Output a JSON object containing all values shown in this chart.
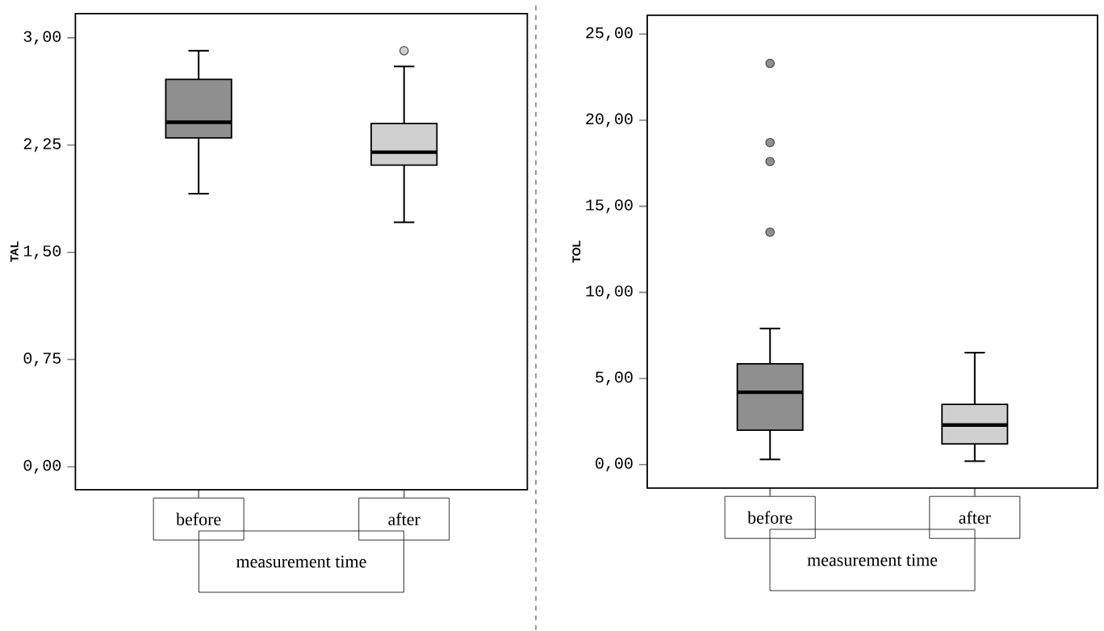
{
  "chart_data": [
    {
      "type": "box",
      "categories": [
        "before",
        "after"
      ],
      "colors": [
        "#8f8f8f",
        "#d0d0d0"
      ],
      "ylabel": "TAL",
      "xlabel": "measurement time",
      "boxes": [
        {
          "low": 1.91,
          "q1": 2.3,
          "median": 2.41,
          "q3": 2.71,
          "high": 2.91
        },
        {
          "low": 1.71,
          "q1": 2.11,
          "median": 2.2,
          "q3": 2.4,
          "high": 2.8,
          "outliers": [
            2.91
          ]
        }
      ],
      "ylim": [
        -0.16,
        3.17
      ],
      "yticks": [
        {
          "value": 0,
          "label": "0,00"
        },
        {
          "value": 0.75,
          "label": "0,75"
        },
        {
          "value": 1.5,
          "label": "1,50"
        },
        {
          "value": 2.25,
          "label": "2,25"
        },
        {
          "value": 3,
          "label": "3,00"
        }
      ]
    },
    {
      "type": "box",
      "categories": [
        "before",
        "after"
      ],
      "colors": [
        "#8f8f8f",
        "#d0d0d0"
      ],
      "ylabel": "TOL",
      "xlabel": "measurement time",
      "boxes": [
        {
          "low": 0.3,
          "q1": 2.0,
          "median": 4.2,
          "q3": 5.85,
          "high": 7.9,
          "outliers": [
            13.5,
            17.6,
            18.7,
            23.3
          ]
        },
        {
          "low": 0.2,
          "q1": 1.2,
          "median": 2.3,
          "q3": 3.5,
          "high": 6.5
        }
      ],
      "ylim": [
        -1.36,
        26.1
      ],
      "yticks": [
        {
          "value": 0,
          "label": "0,00"
        },
        {
          "value": 5,
          "label": "5,00"
        },
        {
          "value": 10,
          "label": "10,00"
        },
        {
          "value": 15,
          "label": "15,00"
        },
        {
          "value": 20,
          "label": "20,00"
        },
        {
          "value": 25,
          "label": "25,00"
        }
      ]
    }
  ]
}
